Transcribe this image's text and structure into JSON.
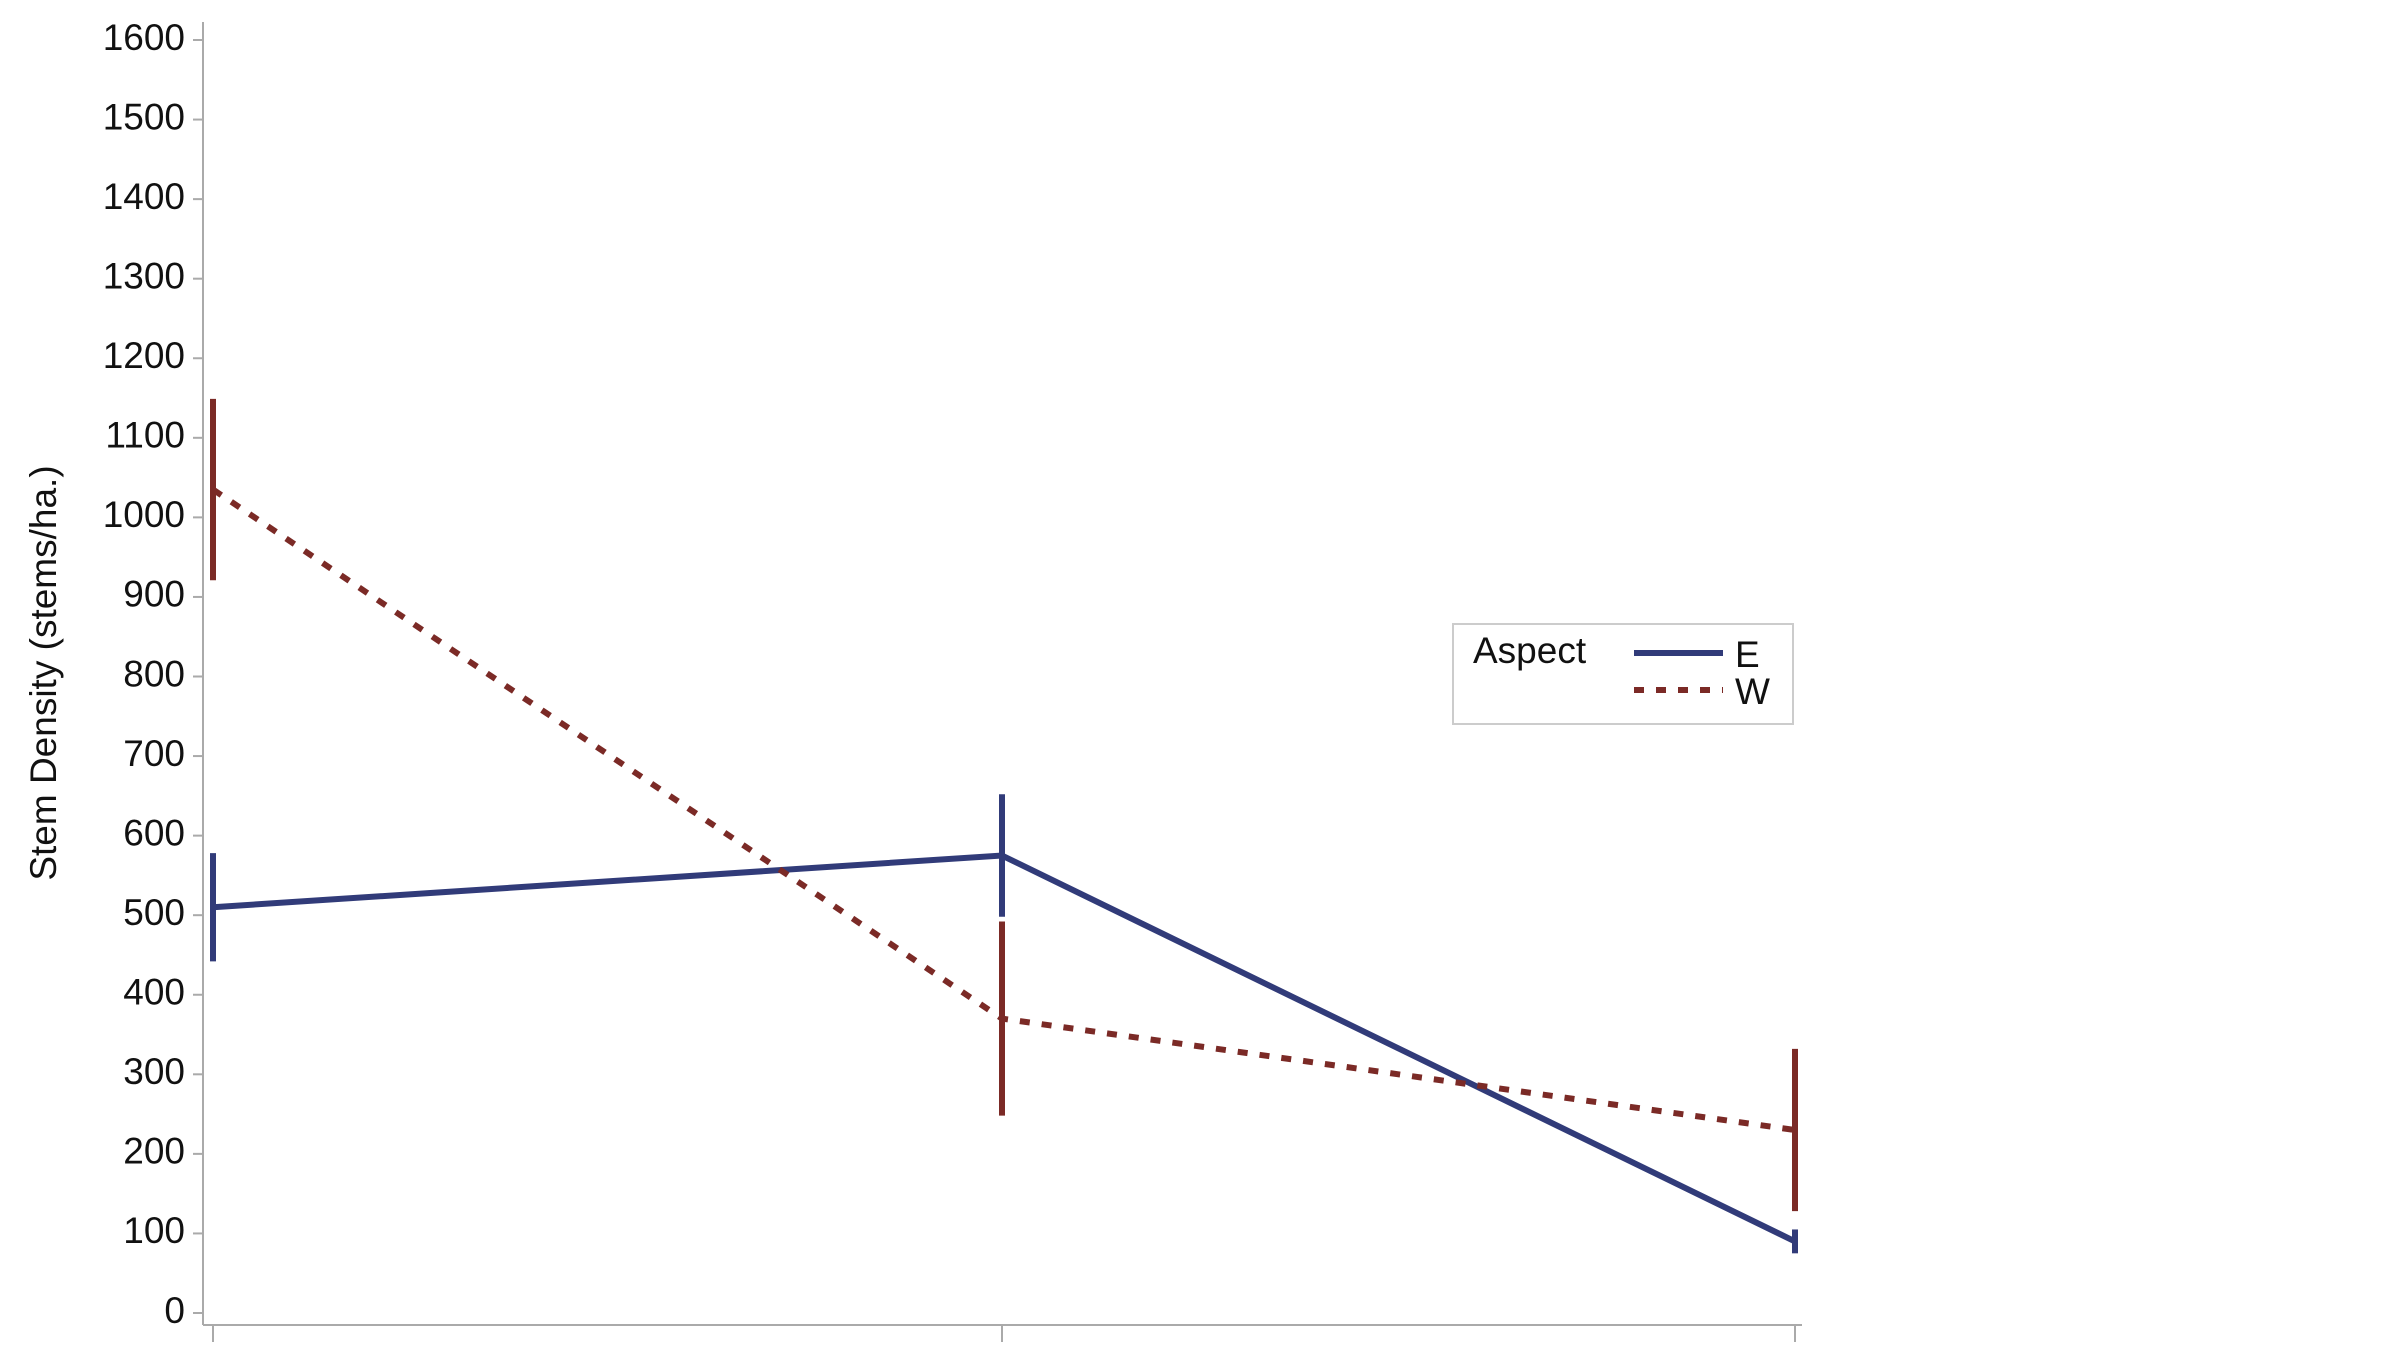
{
  "chart_data": {
    "type": "line",
    "ylabel": "Stem Density (stems/ha.)",
    "categories": [
      null,
      null,
      null
    ],
    "ylim": [
      0,
      1600
    ],
    "yticks": [
      0,
      100,
      200,
      300,
      400,
      500,
      600,
      700,
      800,
      900,
      1000,
      1100,
      1200,
      1300,
      1400,
      1500,
      1600
    ],
    "legend_title": "Aspect",
    "legend_position": "right",
    "series": [
      {
        "name": "E",
        "color": "#313b79",
        "linestyle": "solid",
        "values": [
          510,
          575,
          90
        ],
        "errors": [
          68,
          77,
          15
        ]
      },
      {
        "name": "W",
        "color": "#7b2a26",
        "linestyle": "dashed",
        "values": [
          1035,
          370,
          230
        ],
        "errors": [
          114,
          122,
          102
        ]
      }
    ]
  }
}
